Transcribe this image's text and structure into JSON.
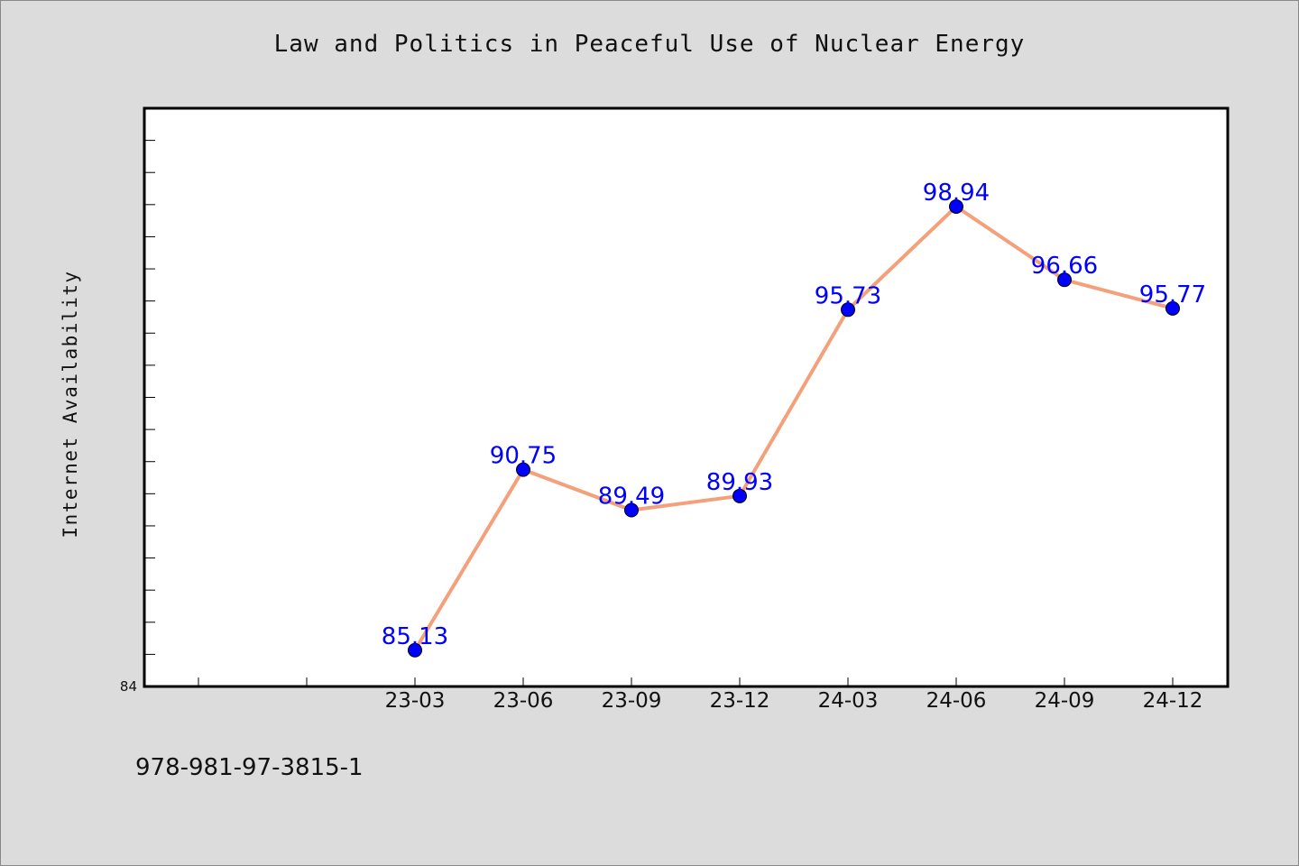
{
  "colors": {
    "background": "#dcdcdc",
    "plot_background": "#ffffff",
    "line": "#f4a07a",
    "marker": "#0000ff",
    "data_label": "#0000ff"
  },
  "footer": {
    "code": "978-981-97-3815-1"
  },
  "chart_data": {
    "type": "line",
    "title": "Law and Politics in Peaceful Use of Nuclear Energy",
    "xlabel": "",
    "ylabel": "Internet Availability",
    "categories": [
      "23-03",
      "23-06",
      "23-09",
      "23-12",
      "24-03",
      "24-06",
      "24-09",
      "24-12"
    ],
    "series": [
      {
        "values": [
          85.13,
          90.75,
          89.49,
          89.93,
          95.73,
          98.94,
          96.66,
          95.77
        ]
      }
    ],
    "data_labels": [
      "85.13",
      "90.75",
      "89.49",
      "89.93",
      "95.73",
      "98.94",
      "96.66",
      "95.77"
    ],
    "ylim": [
      84,
      102
    ],
    "y_tick_labels": [
      "84"
    ],
    "grid": false,
    "legend": "none"
  }
}
